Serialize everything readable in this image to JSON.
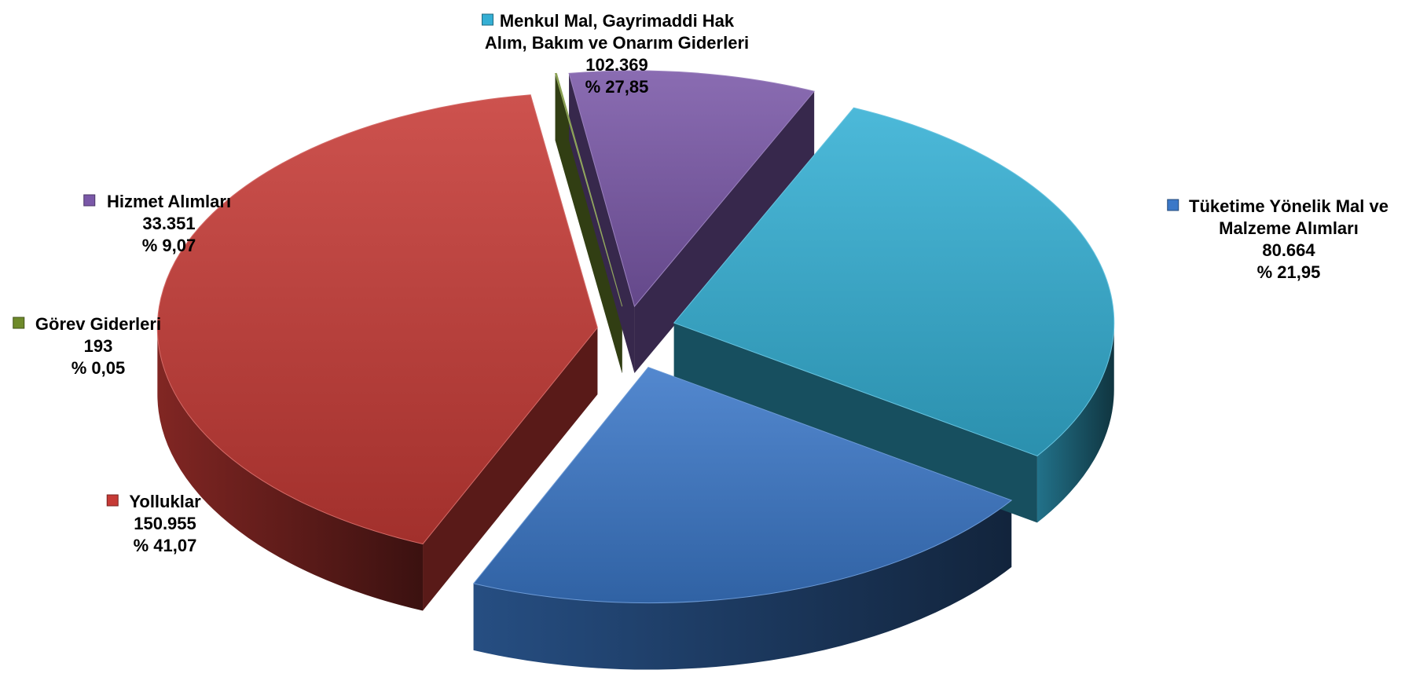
{
  "chart_data": {
    "type": "pie",
    "style": "3d-exploded",
    "legend": "none",
    "slices": [
      {
        "name": "Tüketime Yönelik Mal ve Malzeme Alımları",
        "label_lines": [
          "Tüketime Yönelik Mal ve",
          "Malzeme Alımları"
        ],
        "value": 80664,
        "value_text": "80.664",
        "percent": 21.95,
        "percent_text": "% 21,95",
        "color": "#3B78C8"
      },
      {
        "name": "Yolluklar",
        "label_lines": [
          "Yolluklar"
        ],
        "value": 150955,
        "value_text": "150.955",
        "percent": 41.07,
        "percent_text": "% 41,07",
        "color": "#C63A36"
      },
      {
        "name": "Görev Giderleri",
        "label_lines": [
          "Görev Giderleri"
        ],
        "value": 193,
        "value_text": "193",
        "percent": 0.05,
        "percent_text": "% 0,05",
        "color": "#6E8A2A"
      },
      {
        "name": "Hizmet Alımları",
        "label_lines": [
          "Hizmet Alımları"
        ],
        "value": 33351,
        "value_text": "33.351",
        "percent": 9.07,
        "percent_text": "% 9,07",
        "color": "#7A58A8"
      },
      {
        "name": "Menkul Mal, Gayrimaddi Hak Alım, Bakım ve Onarım Giderleri",
        "label_lines": [
          "Menkul Mal, Gayrimaddi Hak",
          "Alım, Bakım ve Onarım Giderleri"
        ],
        "value": 102369,
        "value_text": "102.369",
        "percent": 27.85,
        "percent_text": "% 27,85",
        "color": "#34AFD4"
      }
    ]
  }
}
